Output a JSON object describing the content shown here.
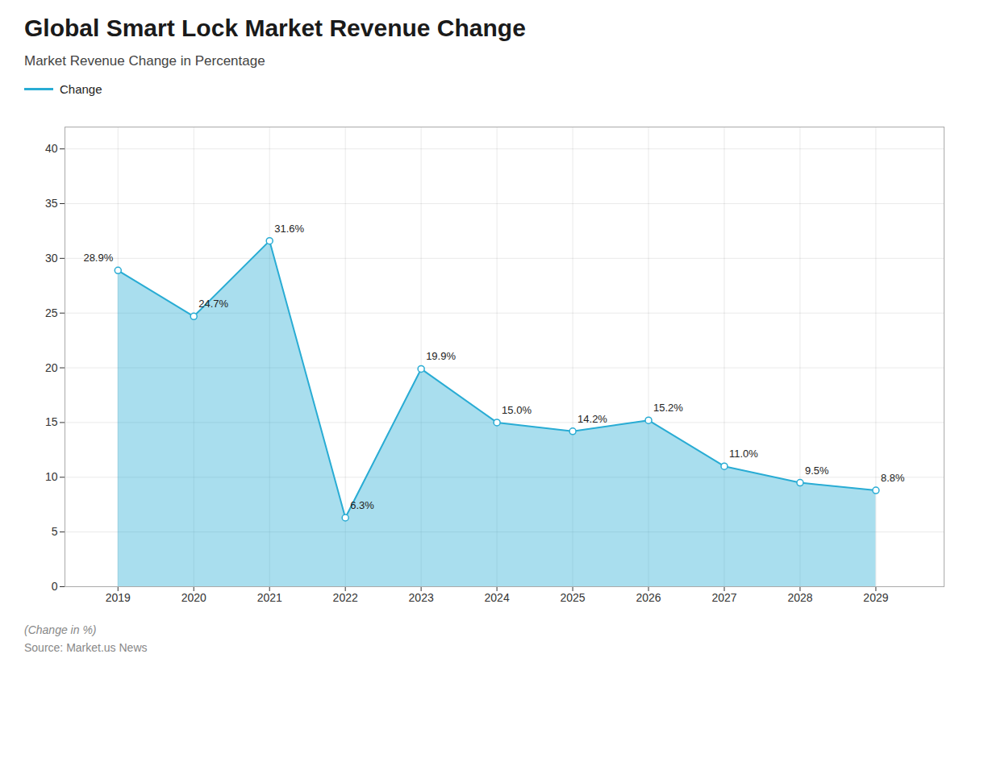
{
  "chart_data": {
    "type": "area",
    "title": "Global Smart Lock Market Revenue Change",
    "subtitle": "Market Revenue Change in Percentage",
    "caption": "(Change in %)",
    "source": "Source: Market.us News",
    "x": [
      2019,
      2020,
      2021,
      2022,
      2023,
      2024,
      2025,
      2026,
      2027,
      2028,
      2029
    ],
    "series": [
      {
        "name": "Change",
        "color": "#29acd4",
        "marker": "circle",
        "values": [
          28.9,
          24.7,
          31.6,
          6.3,
          19.9,
          15.0,
          14.2,
          15.2,
          11.0,
          9.5,
          8.8
        ],
        "value_labels": [
          "28.9%",
          "24.7%",
          "31.6%",
          "6.3%",
          "19.9%",
          "15.0%",
          "14.2%",
          "15.2%",
          "11.0%",
          "9.5%",
          "8.8%"
        ]
      }
    ],
    "xlim": [
      2018.3,
      2029.9
    ],
    "xticks": [
      2019,
      2020,
      2021,
      2022,
      2023,
      2024,
      2025,
      2026,
      2027,
      2028,
      2029
    ],
    "ylim": [
      0,
      42
    ],
    "yticks": [
      0,
      5,
      10,
      15,
      20,
      25,
      30,
      35,
      40
    ],
    "grid": true,
    "legend": "top-left",
    "data_labels": true
  }
}
